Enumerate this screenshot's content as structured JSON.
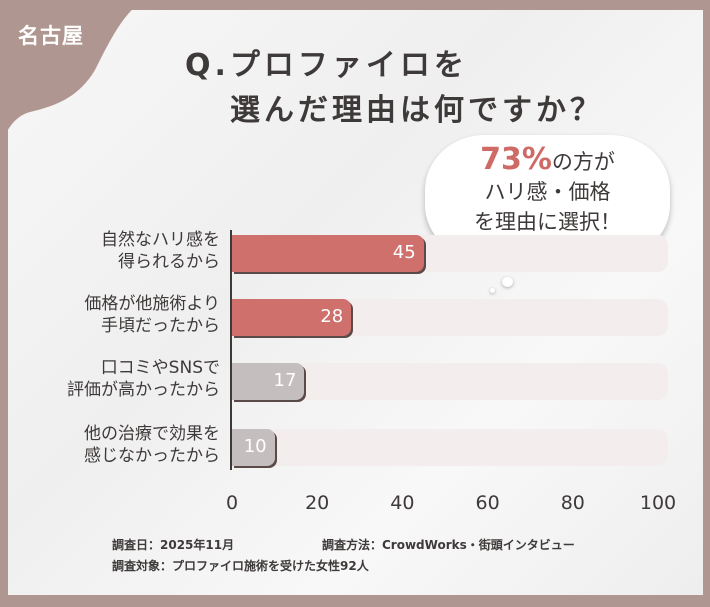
{
  "badge": "名古屋",
  "title_line1": "Q.プロファイロを",
  "title_line2": "選んだ理由は何ですか？",
  "callout": {
    "pct": "73%",
    "line1_rest": "の方が",
    "line2": "ハリ感・価格",
    "line3": "を理由に選択！"
  },
  "notes": {
    "date": "調査日：2025年11月",
    "method": "調査方法：CrowdWorks・街頭インタビュー",
    "target": "調査対象：プロファイロ施術を受けた女性92人"
  },
  "colors": {
    "background": "#b09690",
    "highlight": "#d0706c",
    "muted": "#c4bfbe",
    "track": "#f3eeed"
  },
  "chart_data": {
    "type": "bar",
    "orientation": "horizontal",
    "categories": [
      [
        "自然なハリ感を",
        "得られるから"
      ],
      [
        "価格が他施術より",
        "手頃だったから"
      ],
      [
        "口コミやSNSで",
        "評価が高かったから"
      ],
      [
        "他の治療で効果を",
        "感じなかったから"
      ]
    ],
    "values": [
      45,
      28,
      17,
      10
    ],
    "xlim": [
      0,
      100
    ],
    "xticks": [
      "0",
      "20",
      "40",
      "60",
      "80",
      "100"
    ],
    "highlighted": [
      true,
      true,
      false,
      false
    ]
  }
}
